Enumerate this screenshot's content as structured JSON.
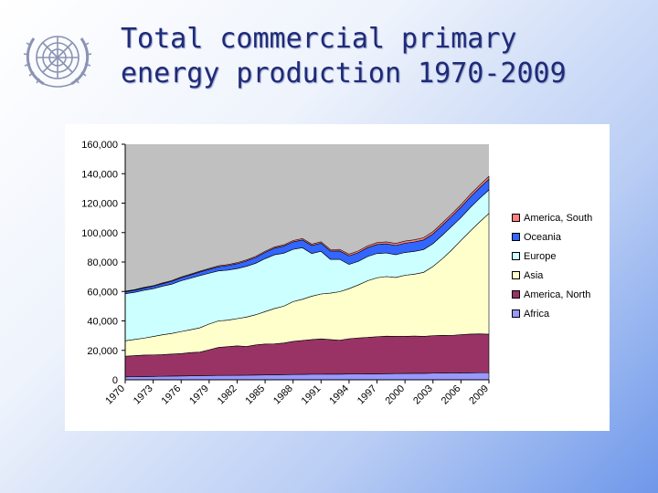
{
  "slide": {
    "title_line1": "Total commercial primary",
    "title_line2": "energy production 1970-2009",
    "logo_icon": "un-emblem-icon"
  },
  "chart_data": {
    "type": "area",
    "stacked": true,
    "title": "",
    "xlabel": "",
    "ylabel": "",
    "ylim": [
      0,
      160000
    ],
    "yticks": [
      0,
      20000,
      40000,
      60000,
      80000,
      100000,
      120000,
      140000,
      160000
    ],
    "ytick_labels": [
      "0",
      "20,000",
      "40,000",
      "60,000",
      "80,000",
      "100,000",
      "120,000",
      "140,000",
      "160,000"
    ],
    "xtick_labels": [
      "1970",
      "1973",
      "1976",
      "1979",
      "1982",
      "1985",
      "1988",
      "1991",
      "1994",
      "1997",
      "2000",
      "2003",
      "2006",
      "2009"
    ],
    "x": [
      1970,
      1971,
      1972,
      1973,
      1974,
      1975,
      1976,
      1977,
      1978,
      1979,
      1980,
      1981,
      1982,
      1983,
      1984,
      1985,
      1986,
      1987,
      1988,
      1989,
      1990,
      1991,
      1992,
      1993,
      1994,
      1995,
      1996,
      1997,
      1998,
      1999,
      2000,
      2001,
      2002,
      2003,
      2004,
      2005,
      2006,
      2007,
      2008,
      2009
    ],
    "grid": false,
    "legend_position": "right",
    "legend_order": [
      "America, South",
      "Oceania",
      "Europe",
      "Asia",
      "America, North",
      "Africa"
    ],
    "series": [
      {
        "name": "Africa",
        "color": "#9999ff",
        "values": [
          2000,
          2100,
          2200,
          2300,
          2400,
          2500,
          2600,
          2700,
          2800,
          2900,
          3000,
          3000,
          3050,
          3100,
          3200,
          3300,
          3400,
          3500,
          3600,
          3700,
          3800,
          3800,
          3850,
          3850,
          3900,
          3950,
          4000,
          4100,
          4150,
          4200,
          4300,
          4350,
          4400,
          4500,
          4600,
          4650,
          4700,
          4750,
          4800,
          4800
        ]
      },
      {
        "name": "America, North",
        "color": "#993366",
        "values": [
          14000,
          14300,
          14600,
          14600,
          14700,
          15000,
          15200,
          15800,
          16000,
          17500,
          19000,
          19500,
          20000,
          19500,
          20500,
          21000,
          21000,
          21500,
          22500,
          23000,
          23500,
          24000,
          23500,
          23000,
          24000,
          24500,
          24800,
          25200,
          25500,
          25300,
          25200,
          25400,
          25100,
          25500,
          25600,
          25500,
          26000,
          26300,
          26400,
          26200
        ]
      },
      {
        "name": "Asia",
        "color": "#ffffcc",
        "values": [
          10500,
          11000,
          11500,
          12500,
          13500,
          14000,
          15000,
          15500,
          16500,
          17500,
          18000,
          18000,
          18500,
          20000,
          20500,
          22000,
          24000,
          25000,
          27000,
          28000,
          29500,
          30500,
          31500,
          33000,
          34000,
          36000,
          38500,
          40000,
          40500,
          40000,
          41500,
          42000,
          43500,
          47000,
          52000,
          58000,
          64000,
          70000,
          76000,
          82000
        ]
      },
      {
        "name": "Europe",
        "color": "#ccffff",
        "values": [
          32000,
          32000,
          32500,
          32500,
          33000,
          33500,
          34500,
          35000,
          35500,
          34500,
          34000,
          34000,
          34000,
          34500,
          35000,
          36000,
          36500,
          36000,
          35500,
          35000,
          29000,
          29000,
          23000,
          22000,
          16500,
          16000,
          16500,
          16500,
          16000,
          15500,
          15500,
          15500,
          15500,
          15500,
          16000,
          16000,
          15500,
          16000,
          16000,
          16000
        ]
      },
      {
        "name": "Oceania",
        "color": "#3366ff",
        "values": [
          1300,
          1400,
          1500,
          1600,
          1700,
          1900,
          2000,
          2200,
          2400,
          2600,
          2800,
          3100,
          3300,
          3600,
          3900,
          4200,
          4500,
          4800,
          5100,
          5300,
          5400,
          5500,
          5600,
          5700,
          5800,
          5900,
          6000,
          6100,
          6200,
          6250,
          6300,
          6400,
          6500,
          6600,
          6700,
          6800,
          7000,
          7100,
          7200,
          7300
        ]
      },
      {
        "name": "America, South",
        "color": "#ff8080",
        "values": [
          400,
          420,
          440,
          460,
          480,
          500,
          520,
          550,
          580,
          610,
          640,
          670,
          700,
          730,
          760,
          790,
          820,
          850,
          880,
          910,
          940,
          970,
          1000,
          1050,
          1100,
          1150,
          1200,
          1250,
          1300,
          1350,
          1400,
          1450,
          1500,
          1550,
          1600,
          1650,
          1700,
          1750,
          1800,
          1850
        ]
      }
    ]
  }
}
